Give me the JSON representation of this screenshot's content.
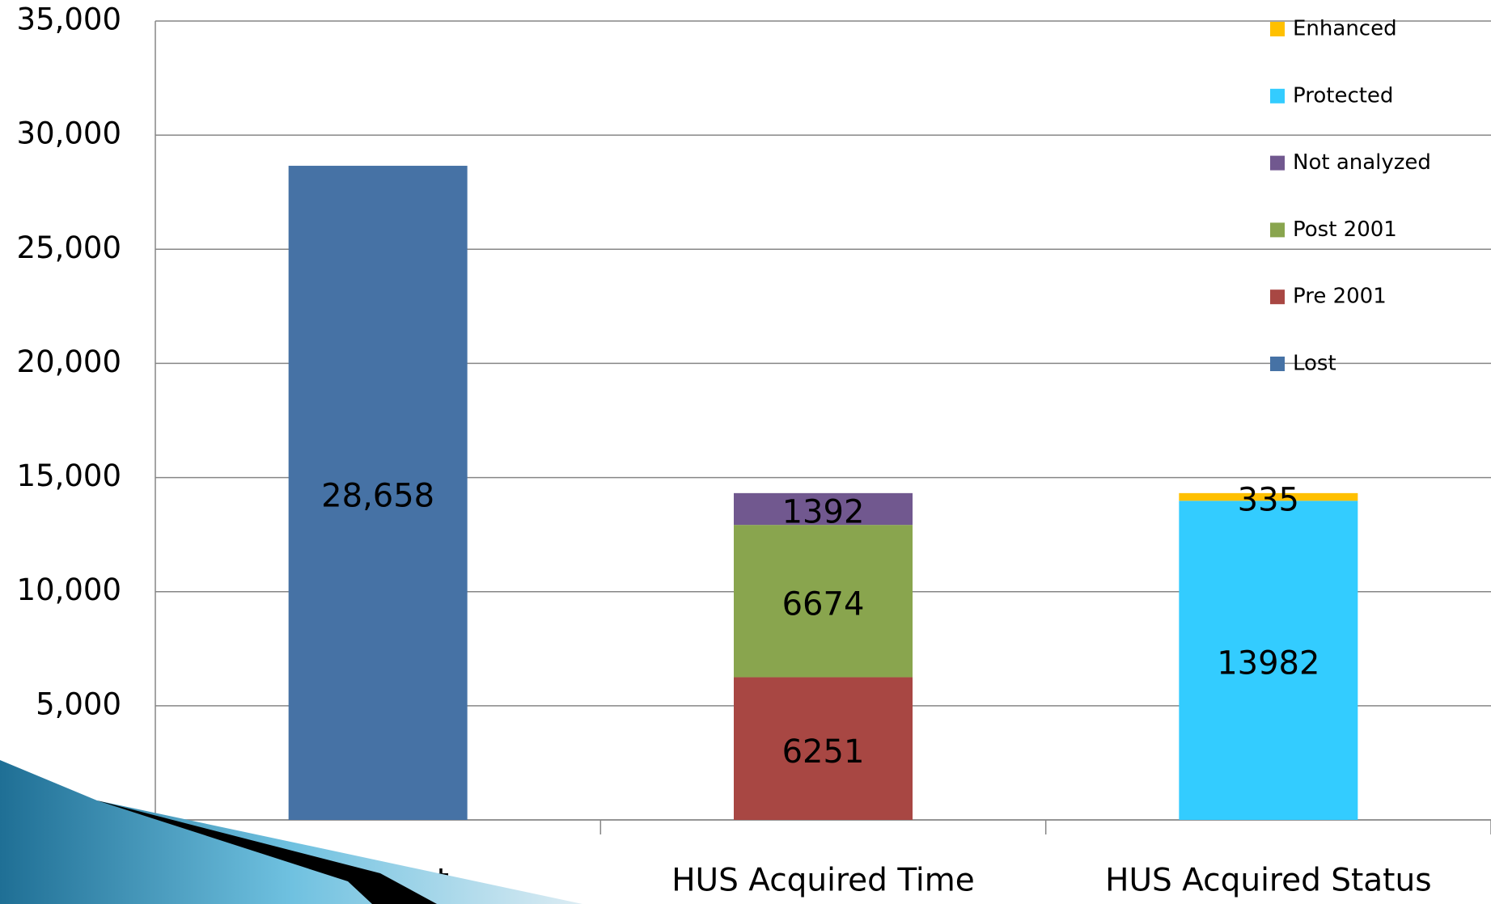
{
  "chart_data": {
    "type": "stacked_bar",
    "categories": [
      "HUS Lost",
      "HUS Acquired Time",
      "HUS Acquired Status"
    ],
    "series": [
      {
        "name": "Lost",
        "color": "#4672a5",
        "values": [
          28658,
          null,
          null
        ],
        "value_labels": [
          "28,658",
          null,
          null
        ]
      },
      {
        "name": "Pre 2001",
        "color": "#a84743",
        "values": [
          null,
          6251,
          null
        ]
      },
      {
        "name": "Post 2001",
        "color": "#89a54e",
        "values": [
          null,
          6674,
          null
        ]
      },
      {
        "name": "Not analyzed",
        "color": "#71588f",
        "values": [
          null,
          1392,
          null
        ]
      },
      {
        "name": "Protected",
        "color": "#33ccff",
        "values": [
          null,
          null,
          13982
        ]
      },
      {
        "name": "Enhanced",
        "color": "#ffc000",
        "values": [
          null,
          null,
          335
        ]
      }
    ],
    "ylim": [
      0,
      35000
    ],
    "yticks": [
      0,
      {
        "value": 5000,
        "label": "5,000"
      },
      {
        "value": 10000,
        "label": "10,000"
      },
      {
        "value": 15000,
        "label": "15,000"
      },
      {
        "value": 20000,
        "label": "20,000"
      },
      {
        "value": 25000,
        "label": "25,000"
      },
      {
        "value": 30000,
        "label": "30,000"
      },
      {
        "value": 35000,
        "label": "35,000"
      }
    ],
    "grid": true,
    "legend": "top-right"
  }
}
